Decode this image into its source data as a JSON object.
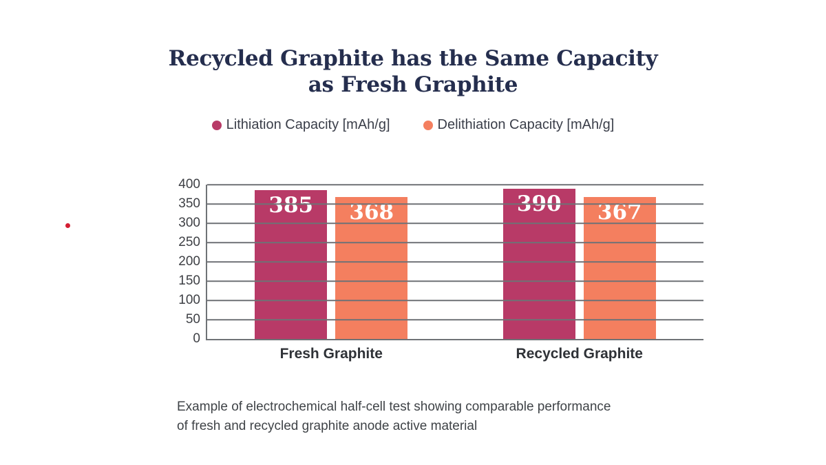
{
  "title_lines": [
    "Recycled Graphite has the Same Capacity",
    "as Fresh Graphite"
  ],
  "caption_lines": [
    "Example of electrochemical half-cell test showing comparable performance",
    "of fresh and recycled graphite anode active material"
  ],
  "colors": {
    "title_text": "#252e4e",
    "lithiation": "#b83a67",
    "delithiation": "#f47f5f",
    "grid_line": "#6f7276",
    "axis_text": "#3d3f44",
    "category_text": "#2f3237",
    "caption_text": "#3f4347",
    "bar_value_text": "#ffffff",
    "red_dot": "#d41e33"
  },
  "chart_data": {
    "type": "bar",
    "title": "Recycled Graphite has the Same Capacity as Fresh Graphite",
    "categories": [
      "Fresh Graphite",
      "Recycled Graphite"
    ],
    "series": [
      {
        "name": "Lithiation Capacity [mAh/g]",
        "color": "#b83a67",
        "values": [
          385,
          390
        ]
      },
      {
        "name": "Delithiation Capacity [mAh/g]",
        "color": "#f47f5f",
        "values": [
          368,
          367
        ]
      }
    ],
    "xlabel": "",
    "ylabel": "",
    "ylim": [
      0,
      400
    ],
    "yticks": [
      400,
      350,
      300,
      250,
      200,
      150,
      100,
      50,
      0
    ],
    "grid": true,
    "legend_position": "top"
  }
}
